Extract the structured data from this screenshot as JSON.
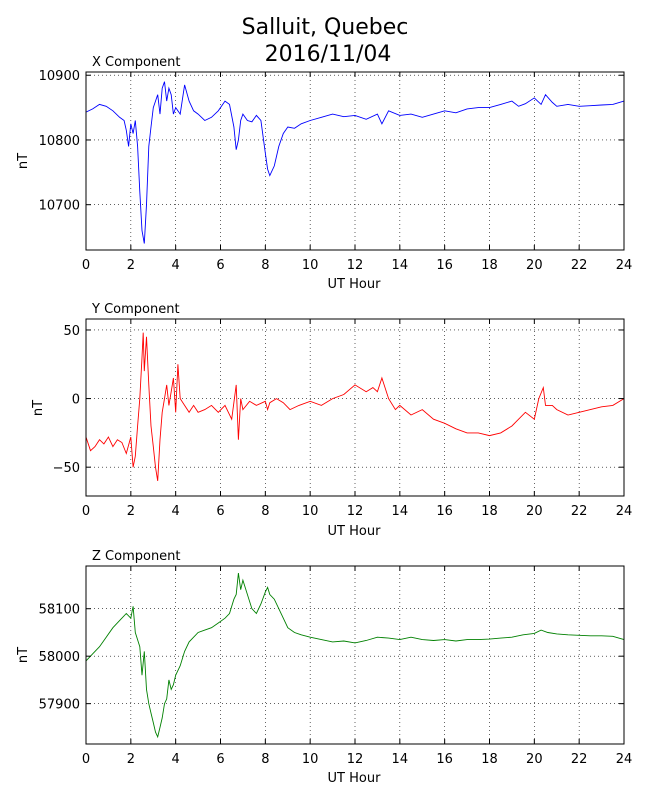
{
  "figure": {
    "title_line1": "Salluit, Quebec",
    "title_line2": "2016/11/04"
  },
  "chart_data": [
    {
      "type": "line",
      "title": "X Component",
      "xlabel": "UT Hour",
      "ylabel": "nT",
      "xlim": [
        0,
        24
      ],
      "ylim": [
        10630,
        10905
      ],
      "xticks": [
        0,
        2,
        4,
        6,
        8,
        10,
        12,
        14,
        16,
        18,
        20,
        22,
        24
      ],
      "yticks": [
        10700,
        10800,
        10900
      ],
      "grid": true,
      "color": "#0000ff",
      "series": [
        {
          "x": [
            0,
            0.3,
            0.6,
            0.9,
            1.2,
            1.5,
            1.7,
            1.8,
            1.9,
            2.0,
            2.1,
            2.2,
            2.3,
            2.4,
            2.5,
            2.6,
            2.7,
            2.8,
            2.9,
            3.0,
            3.1,
            3.2,
            3.3,
            3.4,
            3.5,
            3.6,
            3.7,
            3.8,
            3.9,
            4.0,
            4.2,
            4.4,
            4.6,
            4.8,
            5.0,
            5.3,
            5.6,
            5.9,
            6.2,
            6.4,
            6.6,
            6.7,
            6.8,
            6.9,
            7.0,
            7.2,
            7.4,
            7.6,
            7.8,
            8.0,
            8.1,
            8.2,
            8.4,
            8.6,
            8.8,
            9.0,
            9.3,
            9.6,
            10.0,
            10.5,
            11.0,
            11.5,
            12.0,
            12.5,
            13.0,
            13.2,
            13.5,
            14.0,
            14.5,
            15.0,
            15.5,
            16.0,
            16.5,
            17.0,
            17.5,
            18.0,
            18.5,
            19.0,
            19.3,
            19.6,
            20.0,
            20.3,
            20.5,
            20.8,
            21.0,
            21.5,
            22.0,
            22.5,
            23.0,
            23.5,
            24.0
          ],
          "y": [
            10843,
            10848,
            10855,
            10852,
            10845,
            10835,
            10830,
            10815,
            10790,
            10825,
            10810,
            10830,
            10790,
            10720,
            10660,
            10640,
            10700,
            10790,
            10820,
            10850,
            10860,
            10870,
            10840,
            10880,
            10890,
            10860,
            10880,
            10870,
            10840,
            10850,
            10840,
            10885,
            10860,
            10845,
            10840,
            10830,
            10835,
            10845,
            10860,
            10855,
            10820,
            10785,
            10800,
            10830,
            10840,
            10830,
            10828,
            10838,
            10830,
            10780,
            10755,
            10745,
            10760,
            10790,
            10810,
            10820,
            10818,
            10825,
            10830,
            10835,
            10840,
            10836,
            10838,
            10832,
            10840,
            10825,
            10845,
            10838,
            10840,
            10835,
            10840,
            10845,
            10842,
            10848,
            10850,
            10850,
            10855,
            10860,
            10852,
            10856,
            10865,
            10855,
            10870,
            10858,
            10852,
            10855,
            10852,
            10853,
            10854,
            10855,
            10860
          ]
        }
      ]
    },
    {
      "type": "line",
      "title": "Y Component",
      "xlabel": "UT Hour",
      "ylabel": "nT",
      "xlim": [
        0,
        24
      ],
      "ylim": [
        -71,
        58
      ],
      "xticks": [
        0,
        2,
        4,
        6,
        8,
        10,
        12,
        14,
        16,
        18,
        20,
        22,
        24
      ],
      "yticks": [
        -50,
        0,
        50
      ],
      "grid": true,
      "color": "#ff0000",
      "series": [
        {
          "x": [
            0,
            0.2,
            0.4,
            0.6,
            0.8,
            1.0,
            1.2,
            1.4,
            1.6,
            1.8,
            2.0,
            2.1,
            2.2,
            2.3,
            2.4,
            2.5,
            2.55,
            2.6,
            2.7,
            2.8,
            2.9,
            3.0,
            3.1,
            3.2,
            3.3,
            3.4,
            3.5,
            3.6,
            3.7,
            3.8,
            3.9,
            4.0,
            4.1,
            4.2,
            4.4,
            4.6,
            4.8,
            5.0,
            5.3,
            5.6,
            5.9,
            6.2,
            6.5,
            6.7,
            6.8,
            6.9,
            7.0,
            7.3,
            7.6,
            8.0,
            8.1,
            8.2,
            8.5,
            8.8,
            9.1,
            9.5,
            10.0,
            10.5,
            11.0,
            11.5,
            12.0,
            12.5,
            12.8,
            13.0,
            13.2,
            13.5,
            13.8,
            14.0,
            14.5,
            15.0,
            15.5,
            16.0,
            16.5,
            17.0,
            17.5,
            18.0,
            18.5,
            19.0,
            19.3,
            19.6,
            20.0,
            20.2,
            20.4,
            20.5,
            20.8,
            21.0,
            21.5,
            22.0,
            22.5,
            23.0,
            23.5,
            24.0
          ],
          "y": [
            -28,
            -38,
            -35,
            -30,
            -33,
            -28,
            -35,
            -30,
            -32,
            -40,
            -28,
            -50,
            -42,
            -20,
            0,
            30,
            48,
            20,
            45,
            10,
            -20,
            -35,
            -50,
            -60,
            -30,
            -10,
            0,
            10,
            -5,
            5,
            15,
            -10,
            25,
            0,
            -5,
            -10,
            -5,
            -10,
            -8,
            -5,
            -10,
            -5,
            -15,
            10,
            -30,
            0,
            -8,
            -2,
            -5,
            -2,
            -8,
            -3,
            0,
            -3,
            -8,
            -5,
            -2,
            -5,
            0,
            3,
            10,
            5,
            8,
            5,
            15,
            0,
            -8,
            -5,
            -12,
            -8,
            -15,
            -18,
            -22,
            -25,
            -25,
            -27,
            -25,
            -20,
            -15,
            -10,
            -15,
            0,
            8,
            -5,
            -5,
            -8,
            -12,
            -10,
            -8,
            -6,
            -5,
            0
          ]
        }
      ]
    },
    {
      "type": "line",
      "title": "Z Component",
      "xlabel": "UT Hour",
      "ylabel": "nT",
      "xlim": [
        0,
        24
      ],
      "ylim": [
        57815,
        58190
      ],
      "xticks": [
        0,
        2,
        4,
        6,
        8,
        10,
        12,
        14,
        16,
        18,
        20,
        22,
        24
      ],
      "yticks": [
        57900,
        58000,
        58100
      ],
      "grid": true,
      "color": "#008000",
      "series": [
        {
          "x": [
            0,
            0.3,
            0.6,
            0.9,
            1.2,
            1.5,
            1.8,
            2.0,
            2.1,
            2.2,
            2.4,
            2.5,
            2.6,
            2.7,
            2.8,
            2.9,
            3.0,
            3.1,
            3.2,
            3.3,
            3.4,
            3.5,
            3.6,
            3.7,
            3.8,
            3.9,
            4.0,
            4.2,
            4.4,
            4.6,
            4.8,
            5.0,
            5.3,
            5.6,
            5.9,
            6.2,
            6.4,
            6.6,
            6.7,
            6.8,
            6.9,
            7.0,
            7.2,
            7.4,
            7.6,
            7.8,
            8.0,
            8.1,
            8.2,
            8.4,
            8.6,
            8.8,
            9.0,
            9.3,
            9.6,
            10.0,
            10.5,
            11.0,
            11.5,
            12.0,
            12.5,
            13.0,
            13.5,
            14.0,
            14.5,
            15.0,
            15.5,
            16.0,
            16.5,
            17.0,
            17.5,
            18.0,
            18.5,
            19.0,
            19.5,
            20.0,
            20.3,
            20.6,
            21.0,
            21.5,
            22.0,
            22.5,
            23.0,
            23.5,
            24.0
          ],
          "y": [
            57990,
            58005,
            58020,
            58040,
            58060,
            58075,
            58090,
            58080,
            58105,
            58050,
            58020,
            57960,
            58010,
            57930,
            57900,
            57880,
            57860,
            57840,
            57830,
            57850,
            57870,
            57900,
            57910,
            57950,
            57930,
            57940,
            57960,
            57980,
            58010,
            58030,
            58040,
            58050,
            58055,
            58060,
            58070,
            58080,
            58090,
            58120,
            58130,
            58175,
            58140,
            58160,
            58130,
            58100,
            58090,
            58110,
            58135,
            58145,
            58130,
            58120,
            58100,
            58080,
            58060,
            58050,
            58045,
            58040,
            58035,
            58030,
            58032,
            58028,
            58033,
            58040,
            58038,
            58035,
            58040,
            58035,
            58033,
            58035,
            58032,
            58035,
            58035,
            58036,
            58038,
            58040,
            58045,
            58048,
            58055,
            58050,
            58047,
            58045,
            58044,
            58043,
            58043,
            58042,
            58035
          ]
        }
      ]
    }
  ]
}
